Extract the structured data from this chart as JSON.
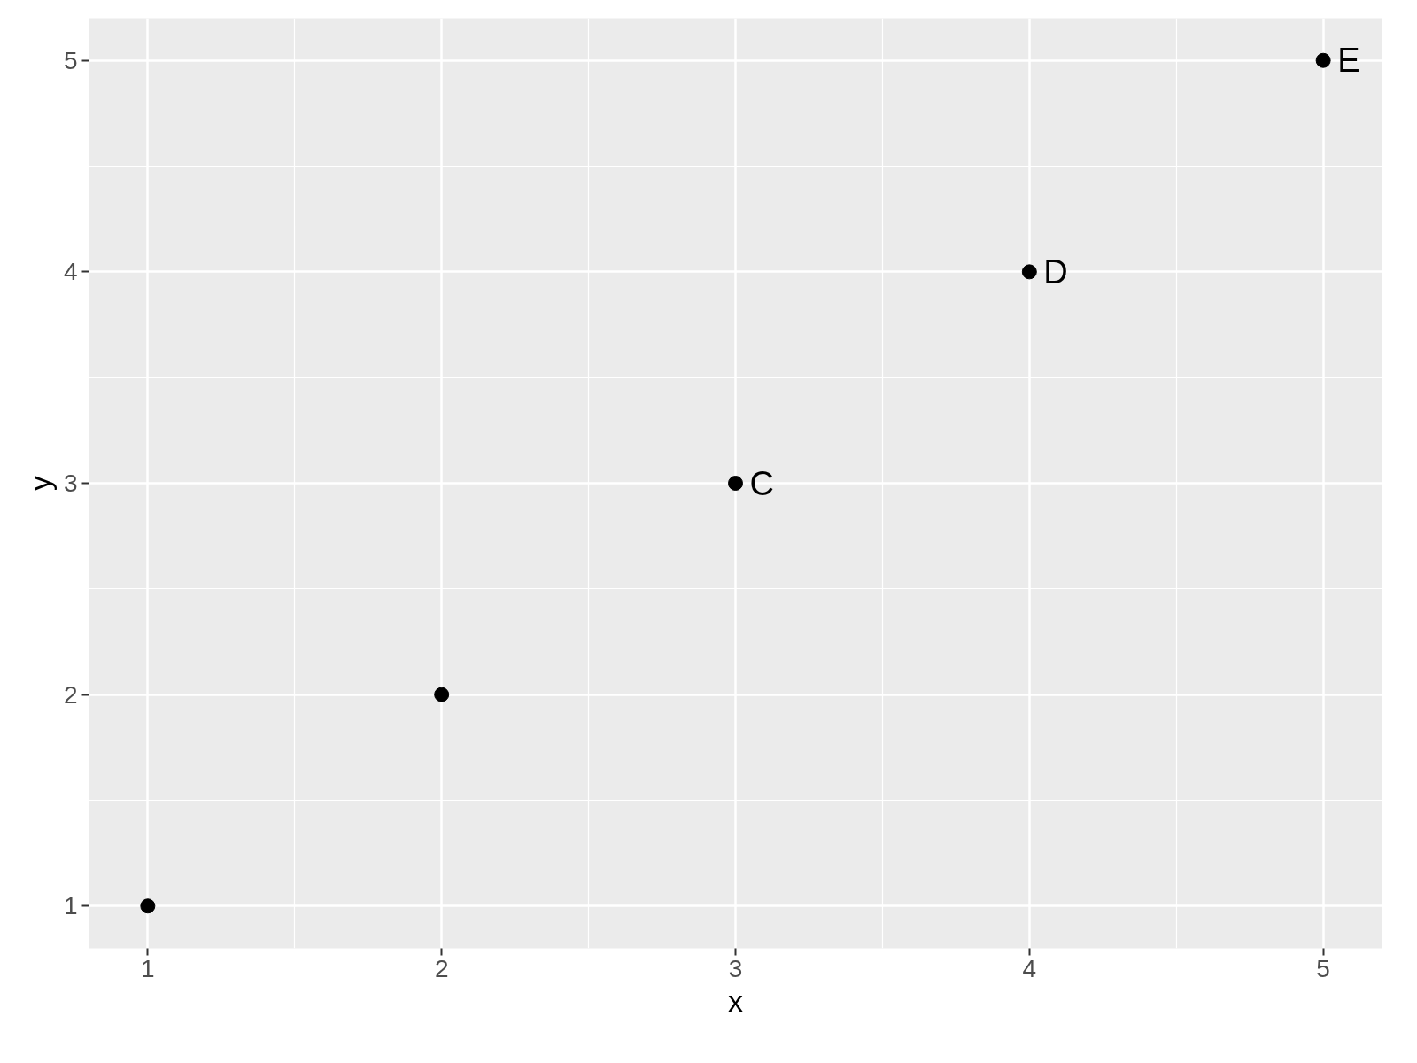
{
  "chart_data": {
    "type": "scatter",
    "xlabel": "x",
    "ylabel": "y",
    "x": [
      1,
      2,
      3,
      4,
      5
    ],
    "series": [
      {
        "color": "#000000",
        "values": [
          1,
          2,
          3,
          4,
          5
        ]
      }
    ],
    "marker": "circle",
    "xlim": [
      0.8,
      5.2
    ],
    "ylim": [
      0.8,
      5.2
    ],
    "xticks": [
      1,
      2,
      3,
      4,
      5
    ],
    "yticks": [
      1,
      2,
      3,
      4,
      5
    ],
    "grid": true,
    "annotations": [
      {
        "text": "C",
        "x": 3,
        "y": 3
      },
      {
        "text": "D",
        "x": 4,
        "y": 4
      },
      {
        "text": "E",
        "x": 5,
        "y": 5
      }
    ]
  }
}
